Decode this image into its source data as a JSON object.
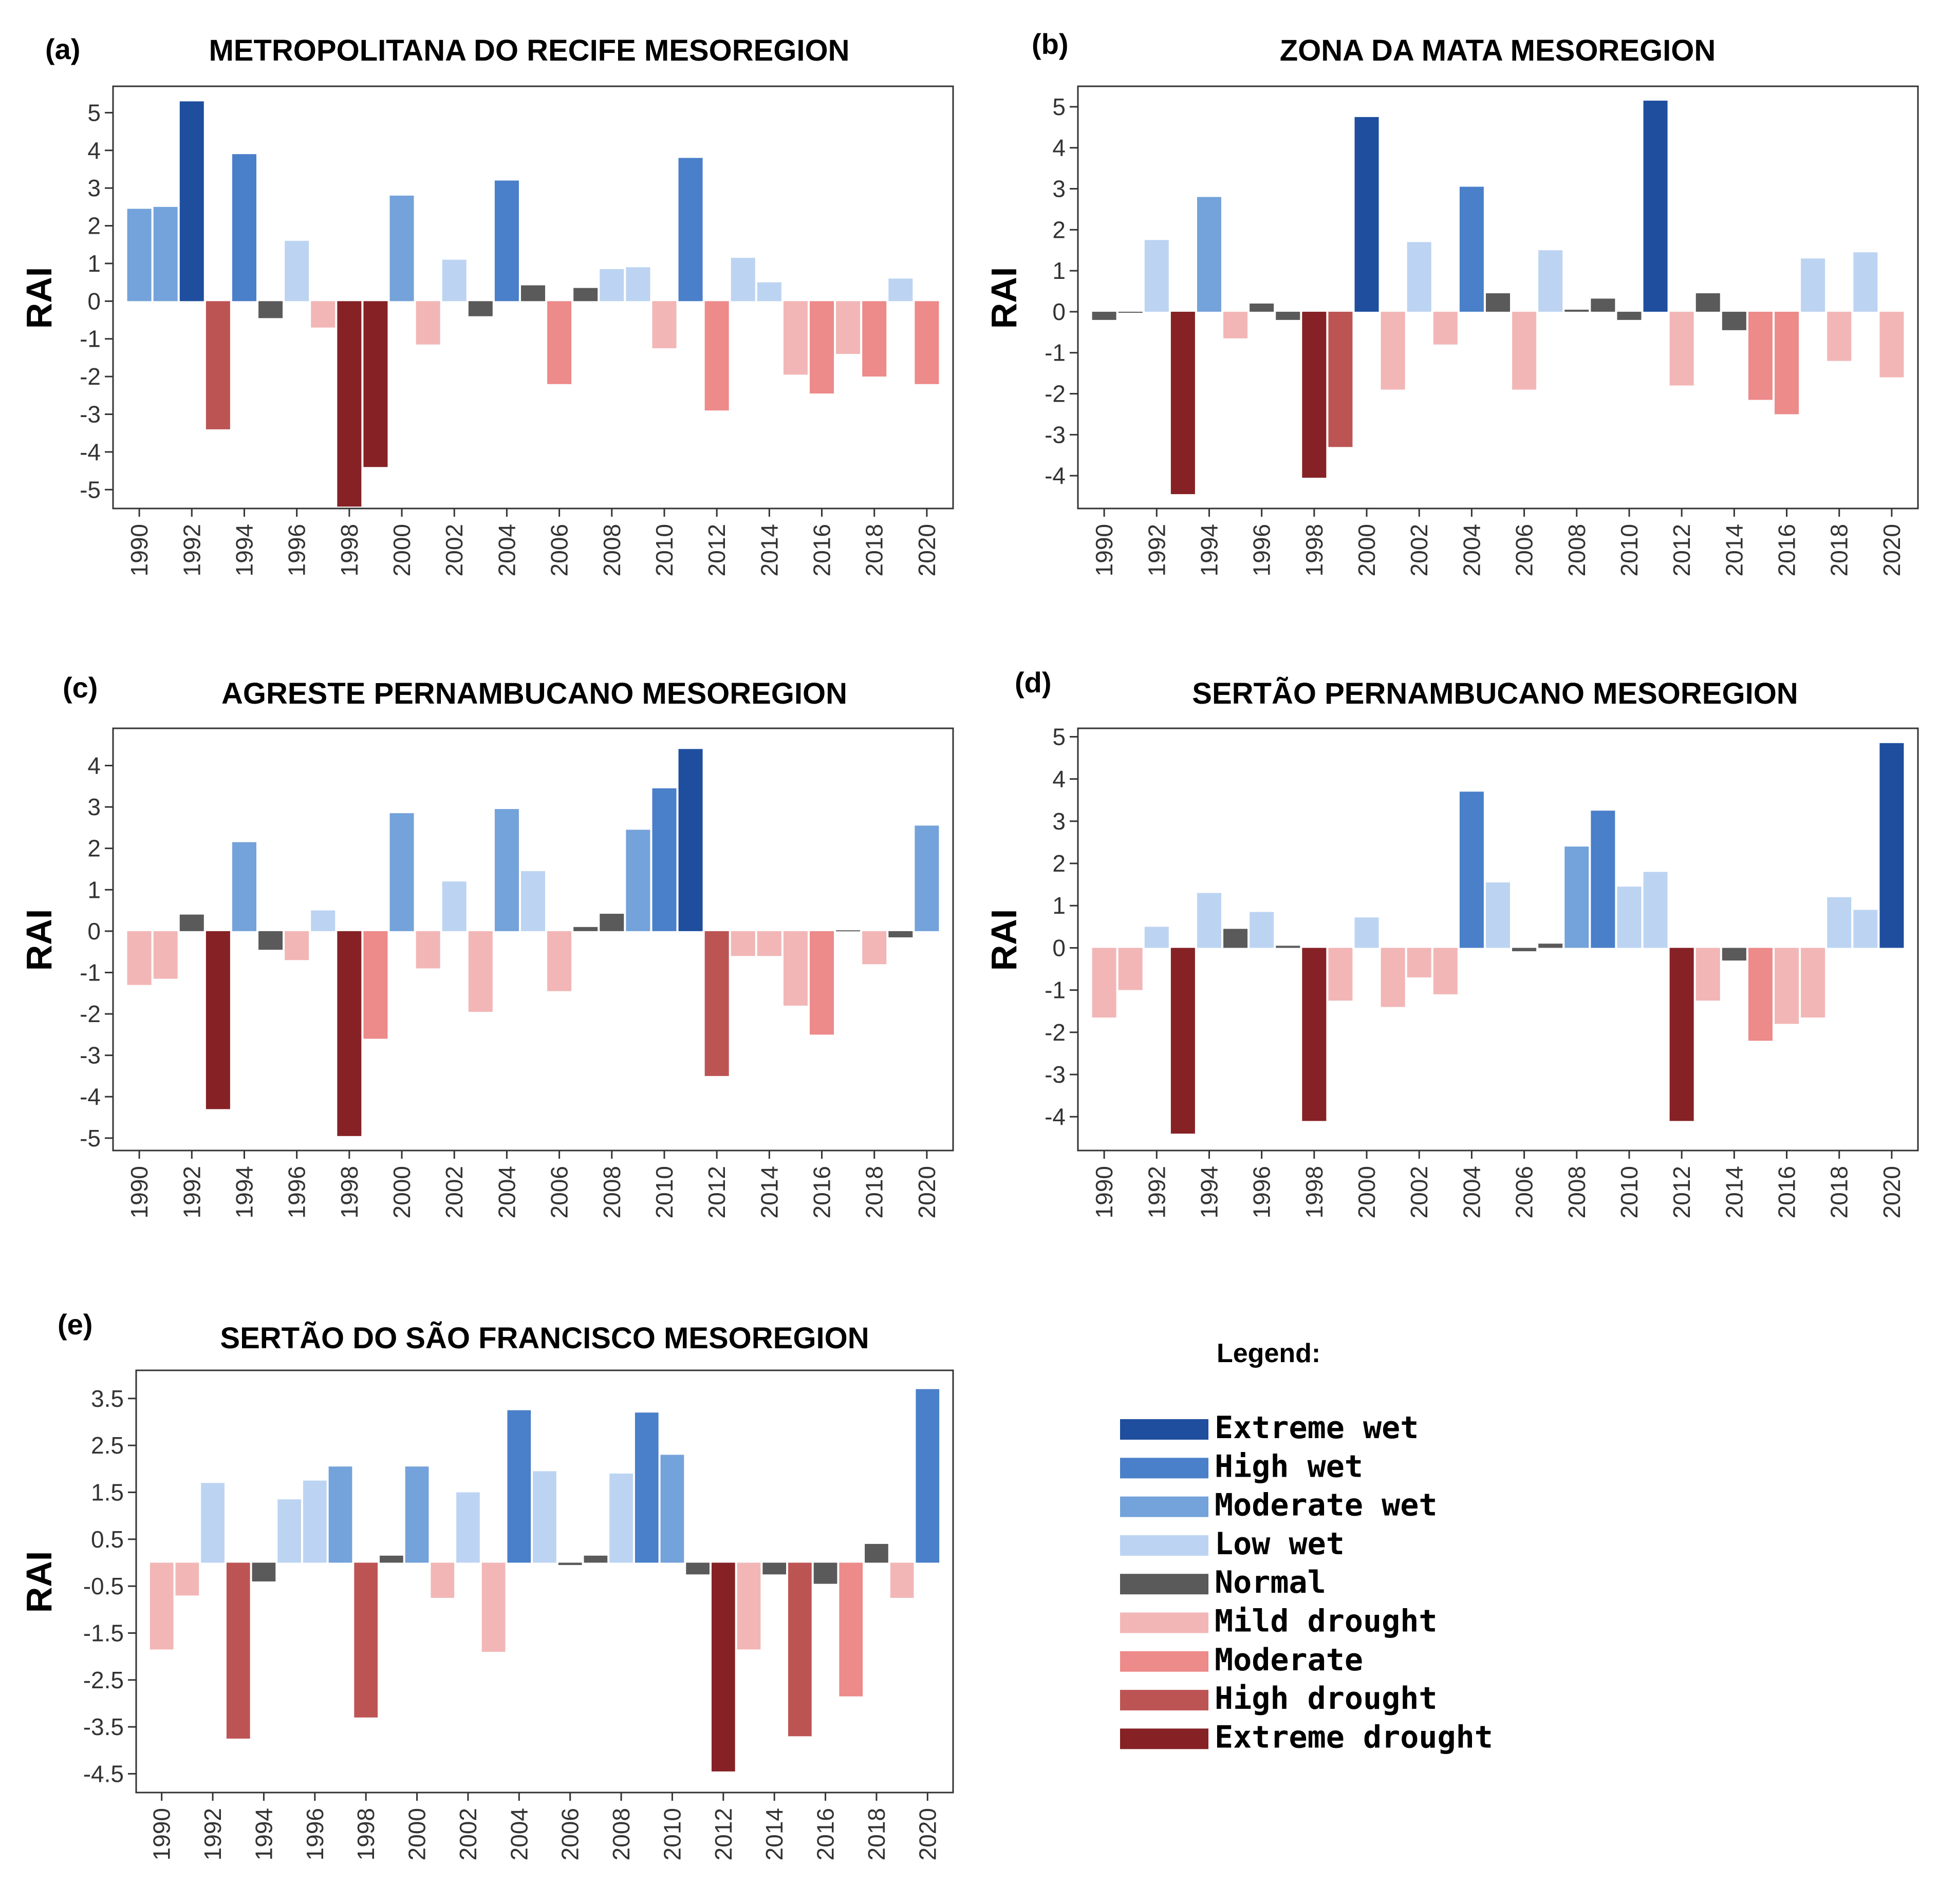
{
  "chart_data": [
    {
      "id": "a",
      "type": "bar",
      "panel_label": "(a)",
      "title": "METROPOLITANA DO RECIFE MESOREGION",
      "ylabel": "RAI",
      "xlabel": "",
      "ylim": [
        -5.5,
        5.7
      ],
      "yticks": [
        5,
        4,
        3,
        2,
        1,
        0,
        -1,
        -2,
        -3,
        -4,
        -5
      ],
      "xtick_labels": [
        "1990",
        "1992",
        "1994",
        "1996",
        "1998",
        "2000",
        "2002",
        "2004",
        "2006",
        "2008",
        "2010",
        "2012",
        "2014",
        "2016",
        "2018",
        "2020"
      ],
      "years": [
        1990,
        1991,
        1992,
        1993,
        1994,
        1995,
        1996,
        1997,
        1998,
        1999,
        2000,
        2001,
        2002,
        2003,
        2004,
        2005,
        2006,
        2007,
        2008,
        2009,
        2010,
        2011,
        2012,
        2013,
        2014,
        2015,
        2016,
        2017,
        2018,
        2019,
        2020
      ],
      "values": [
        2.45,
        2.5,
        5.3,
        -3.4,
        3.9,
        -0.45,
        1.6,
        -0.7,
        -5.45,
        -4.4,
        2.8,
        -1.15,
        1.1,
        -0.4,
        3.2,
        0.42,
        -2.2,
        0.35,
        0.85,
        0.9,
        -1.25,
        3.8,
        -2.9,
        1.15,
        0.5,
        -1.95,
        -2.45,
        -1.4,
        -2.0,
        0.6,
        -2.2
      ],
      "classes": [
        "moderate_wet",
        "moderate_wet",
        "extreme_wet",
        "high_drought",
        "high_wet",
        "normal",
        "low_wet",
        "mild_drought",
        "extreme_drought",
        "extreme_drought",
        "moderate_wet",
        "mild_drought",
        "low_wet",
        "normal",
        "high_wet",
        "normal",
        "moderate",
        "normal",
        "low_wet",
        "low_wet",
        "mild_drought",
        "high_wet",
        "moderate",
        "low_wet",
        "low_wet",
        "mild_drought",
        "moderate",
        "mild_drought",
        "moderate",
        "low_wet",
        "moderate"
      ]
    },
    {
      "id": "b",
      "type": "bar",
      "panel_label": "(b)",
      "title": "ZONA DA MATA MESOREGION",
      "ylabel": "RAI",
      "xlabel": "",
      "ylim": [
        -4.8,
        5.5
      ],
      "yticks": [
        5,
        4,
        3,
        2,
        1,
        0,
        -1,
        -2,
        -3,
        -4
      ],
      "xtick_labels": [
        "1990",
        "1992",
        "1994",
        "1996",
        "1998",
        "2000",
        "2002",
        "2004",
        "2006",
        "2008",
        "2010",
        "2012",
        "2014",
        "2016",
        "2018",
        "2020"
      ],
      "years": [
        1990,
        1991,
        1992,
        1993,
        1994,
        1995,
        1996,
        1997,
        1998,
        1999,
        2000,
        2001,
        2002,
        2003,
        2004,
        2005,
        2006,
        2007,
        2008,
        2009,
        2010,
        2011,
        2012,
        2013,
        2014,
        2015,
        2016,
        2017,
        2018,
        2019,
        2020
      ],
      "values": [
        -0.2,
        0,
        1.75,
        -4.45,
        2.8,
        -0.65,
        0.2,
        -0.2,
        -4.05,
        -3.3,
        4.75,
        -1.9,
        1.7,
        -0.8,
        3.05,
        0.45,
        -1.9,
        1.5,
        0.05,
        0.32,
        -0.2,
        5.15,
        -1.8,
        0.45,
        -0.45,
        -2.15,
        -2.5,
        1.3,
        -1.2,
        1.45,
        -1.6
      ],
      "classes": [
        "normal",
        "normal",
        "low_wet",
        "extreme_drought",
        "moderate_wet",
        "mild_drought",
        "normal",
        "normal",
        "extreme_drought",
        "high_drought",
        "extreme_wet",
        "mild_drought",
        "low_wet",
        "mild_drought",
        "high_wet",
        "normal",
        "mild_drought",
        "low_wet",
        "normal",
        "normal",
        "normal",
        "extreme_wet",
        "mild_drought",
        "normal",
        "normal",
        "moderate",
        "moderate",
        "low_wet",
        "mild_drought",
        "low_wet",
        "mild_drought"
      ]
    },
    {
      "id": "c",
      "type": "bar",
      "panel_label": "(c)",
      "title": "AGRESTE PERNAMBUCANO MESOREGION",
      "ylabel": "RAI",
      "xlabel": "",
      "ylim": [
        -5.3,
        4.9
      ],
      "yticks": [
        4,
        3,
        2,
        1,
        0,
        -1,
        -2,
        -3,
        -4,
        -5
      ],
      "xtick_labels": [
        "1990",
        "1992",
        "1994",
        "1996",
        "1998",
        "2000",
        "2002",
        "2004",
        "2006",
        "2008",
        "2010",
        "2012",
        "2014",
        "2016",
        "2018",
        "2020"
      ],
      "years": [
        1990,
        1991,
        1992,
        1993,
        1994,
        1995,
        1996,
        1997,
        1998,
        1999,
        2000,
        2001,
        2002,
        2003,
        2004,
        2005,
        2006,
        2007,
        2008,
        2009,
        2010,
        2011,
        2012,
        2013,
        2014,
        2015,
        2016,
        2017,
        2018,
        2019,
        2020
      ],
      "values": [
        -1.3,
        -1.15,
        0.4,
        -4.3,
        2.15,
        -0.45,
        -0.7,
        0.5,
        -4.95,
        -2.6,
        2.85,
        -0.9,
        1.2,
        -1.95,
        2.95,
        1.45,
        -1.45,
        0.1,
        0.42,
        2.45,
        3.45,
        4.4,
        -3.5,
        -0.6,
        -0.6,
        -1.8,
        -2.5,
        0.02,
        -0.8,
        -0.15,
        2.55
      ],
      "classes": [
        "mild_drought",
        "mild_drought",
        "normal",
        "extreme_drought",
        "moderate_wet",
        "normal",
        "mild_drought",
        "low_wet",
        "extreme_drought",
        "moderate",
        "moderate_wet",
        "mild_drought",
        "low_wet",
        "mild_drought",
        "moderate_wet",
        "low_wet",
        "mild_drought",
        "normal",
        "normal",
        "moderate_wet",
        "high_wet",
        "extreme_wet",
        "high_drought",
        "mild_drought",
        "mild_drought",
        "mild_drought",
        "moderate",
        "normal",
        "mild_drought",
        "normal",
        "moderate_wet"
      ]
    },
    {
      "id": "d",
      "type": "bar",
      "panel_label": "(d)",
      "title": "SERTÃO PERNAMBUCANO MESOREGION",
      "ylabel": "RAI",
      "xlabel": "",
      "ylim": [
        -4.8,
        5.2
      ],
      "yticks": [
        5,
        4,
        3,
        2,
        1,
        0,
        -1,
        -2,
        -3,
        -4
      ],
      "xtick_labels": [
        "1990",
        "1992",
        "1994",
        "1996",
        "1998",
        "2000",
        "2002",
        "2004",
        "2006",
        "2008",
        "2010",
        "2012",
        "2014",
        "2016",
        "2018",
        "2020"
      ],
      "years": [
        1990,
        1991,
        1992,
        1993,
        1994,
        1995,
        1996,
        1997,
        1998,
        1999,
        2000,
        2001,
        2002,
        2003,
        2004,
        2005,
        2006,
        2007,
        2008,
        2009,
        2010,
        2011,
        2012,
        2013,
        2014,
        2015,
        2016,
        2017,
        2018,
        2019,
        2020
      ],
      "values": [
        -1.65,
        -1.0,
        0.5,
        -4.4,
        1.3,
        0.45,
        0.85,
        0.05,
        -4.1,
        -1.25,
        0.72,
        -1.4,
        -0.7,
        -1.1,
        3.7,
        1.55,
        -0.08,
        0.1,
        2.4,
        3.25,
        1.45,
        1.8,
        -4.1,
        -1.25,
        -0.3,
        -2.2,
        -1.8,
        -1.65,
        1.2,
        0.9,
        4.85
      ],
      "classes": [
        "mild_drought",
        "mild_drought",
        "low_wet",
        "extreme_drought",
        "low_wet",
        "normal",
        "low_wet",
        "normal",
        "extreme_drought",
        "mild_drought",
        "low_wet",
        "mild_drought",
        "mild_drought",
        "mild_drought",
        "high_wet",
        "low_wet",
        "normal",
        "normal",
        "moderate_wet",
        "high_wet",
        "low_wet",
        "low_wet",
        "extreme_drought",
        "mild_drought",
        "normal",
        "moderate",
        "mild_drought",
        "mild_drought",
        "low_wet",
        "low_wet",
        "extreme_wet"
      ]
    },
    {
      "id": "e",
      "type": "bar",
      "panel_label": "(e)",
      "title": "SERTÃO DO SÃO FRANCISCO MESOREGION",
      "ylabel": "RAI",
      "xlabel": "",
      "ylim": [
        -4.9,
        4.1
      ],
      "yticks": [
        3.5,
        2.5,
        1.5,
        0.5,
        -0.5,
        -1.5,
        -2.5,
        -3.5,
        -4.5
      ],
      "ytick_labels": [
        "3.5",
        "2.5",
        "1.5",
        "0.5",
        "-0.5",
        "-1.5",
        "-2.5",
        "-3.5",
        "-4.5"
      ],
      "xtick_labels": [
        "1990",
        "1992",
        "1994",
        "1996",
        "1998",
        "2000",
        "2002",
        "2004",
        "2006",
        "2008",
        "2010",
        "2012",
        "2014",
        "2016",
        "2018",
        "2020"
      ],
      "years": [
        1990,
        1991,
        1992,
        1993,
        1994,
        1995,
        1996,
        1997,
        1998,
        1999,
        2000,
        2001,
        2002,
        2003,
        2004,
        2005,
        2006,
        2007,
        2008,
        2009,
        2010,
        2011,
        2012,
        2013,
        2014,
        2015,
        2016,
        2017,
        2018,
        2019,
        2020
      ],
      "values": [
        -1.85,
        -0.7,
        1.7,
        -3.75,
        -0.4,
        1.35,
        1.75,
        2.05,
        -3.3,
        0.15,
        2.05,
        -0.75,
        1.5,
        -1.9,
        3.25,
        1.95,
        -0.05,
        0.15,
        1.9,
        3.2,
        2.3,
        -0.25,
        -4.45,
        -1.85,
        -0.25,
        -3.7,
        -0.45,
        -2.85,
        0.4,
        -0.75,
        3.7
      ],
      "classes": [
        "mild_drought",
        "mild_drought",
        "low_wet",
        "high_drought",
        "normal",
        "low_wet",
        "low_wet",
        "moderate_wet",
        "high_drought",
        "normal",
        "moderate_wet",
        "mild_drought",
        "low_wet",
        "mild_drought",
        "high_wet",
        "low_wet",
        "normal",
        "normal",
        "low_wet",
        "high_wet",
        "moderate_wet",
        "normal",
        "extreme_drought",
        "mild_drought",
        "normal",
        "high_drought",
        "normal",
        "moderate",
        "normal",
        "mild_drought",
        "high_wet"
      ]
    }
  ],
  "legend": {
    "title": "Legend:",
    "items": [
      {
        "key": "extreme_wet",
        "label": "Extreme wet",
        "color": "#1f4e9e"
      },
      {
        "key": "high_wet",
        "label": "High wet",
        "color": "#4a7fc9"
      },
      {
        "key": "moderate_wet",
        "label": "Moderate wet",
        "color": "#74a2da"
      },
      {
        "key": "low_wet",
        "label": "Low wet",
        "color": "#bcd4f2"
      },
      {
        "key": "normal",
        "label": "Normal",
        "color": "#5a5a5a"
      },
      {
        "key": "mild_drought",
        "label": "Mild drought",
        "color": "#f2b6b6"
      },
      {
        "key": "moderate",
        "label": "Moderate",
        "color": "#ed8a8a"
      },
      {
        "key": "high_drought",
        "label": "High drought",
        "color": "#bd5454"
      },
      {
        "key": "extreme_drought",
        "label": "Extreme drought",
        "color": "#862125"
      }
    ]
  }
}
